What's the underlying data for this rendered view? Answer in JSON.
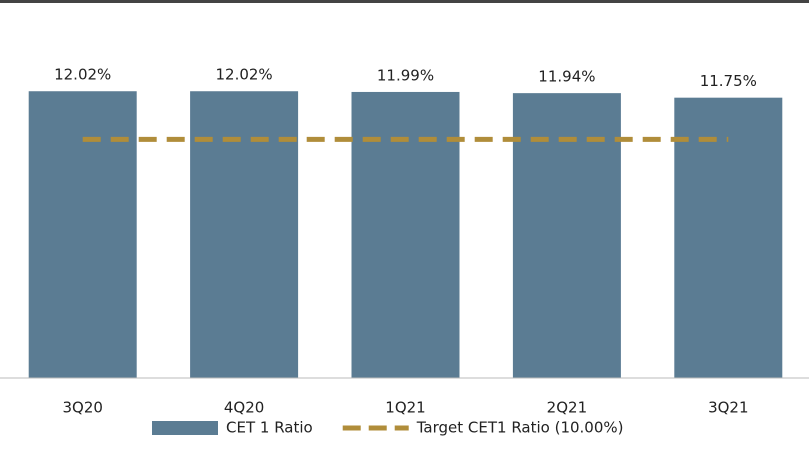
{
  "chart_data": {
    "type": "bar",
    "categories": [
      "3Q20",
      "4Q20",
      "1Q21",
      "2Q21",
      "3Q21"
    ],
    "series": [
      {
        "name": "CET 1 Ratio",
        "type": "bar",
        "color": "#5b7c93",
        "values": [
          12.02,
          12.02,
          11.99,
          11.94,
          11.75
        ],
        "value_labels": [
          "12.02%",
          "12.02%",
          "11.99%",
          "11.94%",
          "11.75%"
        ]
      },
      {
        "name": "Target CET1 Ratio (10.00%)",
        "type": "line",
        "color": "#b08d3a",
        "dashed": true,
        "values": [
          10,
          10,
          10,
          10,
          10
        ]
      }
    ],
    "ylim": [
      0,
      14
    ],
    "grid": false,
    "legend": "bottom"
  }
}
